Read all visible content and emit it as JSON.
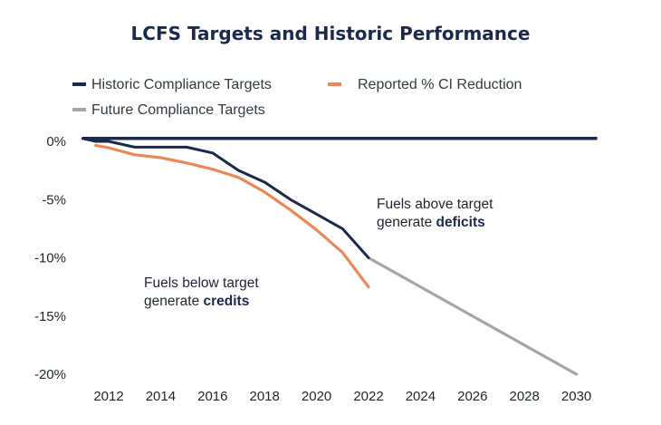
{
  "chart_data": {
    "type": "line",
    "title": "LCFS Targets and Historic Performance",
    "xlabel": "",
    "ylabel": "",
    "xlim": [
      2011,
      2030.5
    ],
    "ylim": [
      -20.5,
      0.5
    ],
    "x_ticks": [
      2012,
      2014,
      2016,
      2018,
      2020,
      2022,
      2024,
      2026,
      2028,
      2030
    ],
    "y_ticks": [
      {
        "value": 0,
        "label": "0%"
      },
      {
        "value": -5,
        "label": "-5%"
      },
      {
        "value": -10,
        "label": "-10%"
      },
      {
        "value": -15,
        "label": "-15%"
      },
      {
        "value": -20,
        "label": "-20%"
      }
    ],
    "grid": false,
    "legend_position": "top",
    "series": [
      {
        "name": "Historic Compliance Targets",
        "color": "#1b2a4a",
        "x": [
          2011,
          2011.5,
          2012,
          2013,
          2014,
          2015,
          2016,
          2017,
          2018,
          2019,
          2020,
          2021,
          2022
        ],
        "values": [
          0.25,
          0,
          0,
          -0.5,
          -0.5,
          -0.5,
          -1.0,
          -2.5,
          -3.5,
          -5.0,
          -6.25,
          -7.5,
          -10.0
        ]
      },
      {
        "name": "Reported % CI Reduction",
        "color": "#e8895a",
        "x": [
          2011.5,
          2012,
          2013,
          2014,
          2015,
          2016,
          2017,
          2018,
          2019,
          2020,
          2021,
          2022
        ],
        "values": [
          -0.35,
          -0.55,
          -1.15,
          -1.4,
          -1.85,
          -2.4,
          -3.1,
          -4.35,
          -5.9,
          -7.6,
          -9.55,
          -12.5
        ]
      },
      {
        "name": "Future Compliance Targets",
        "color": "#a6a6a6",
        "x": [
          2022,
          2030
        ],
        "values": [
          -10.0,
          -20.0
        ]
      }
    ],
    "baseline": {
      "y": 0.25,
      "from": 2011,
      "to": 2030.8,
      "color": "#1b2a4a"
    },
    "annotations": [
      {
        "lines": [
          "Fuels above target",
          "generate "
        ],
        "bold": "deficits"
      },
      {
        "lines": [
          "Fuels below target",
          "generate "
        ],
        "bold": "credits"
      }
    ]
  }
}
